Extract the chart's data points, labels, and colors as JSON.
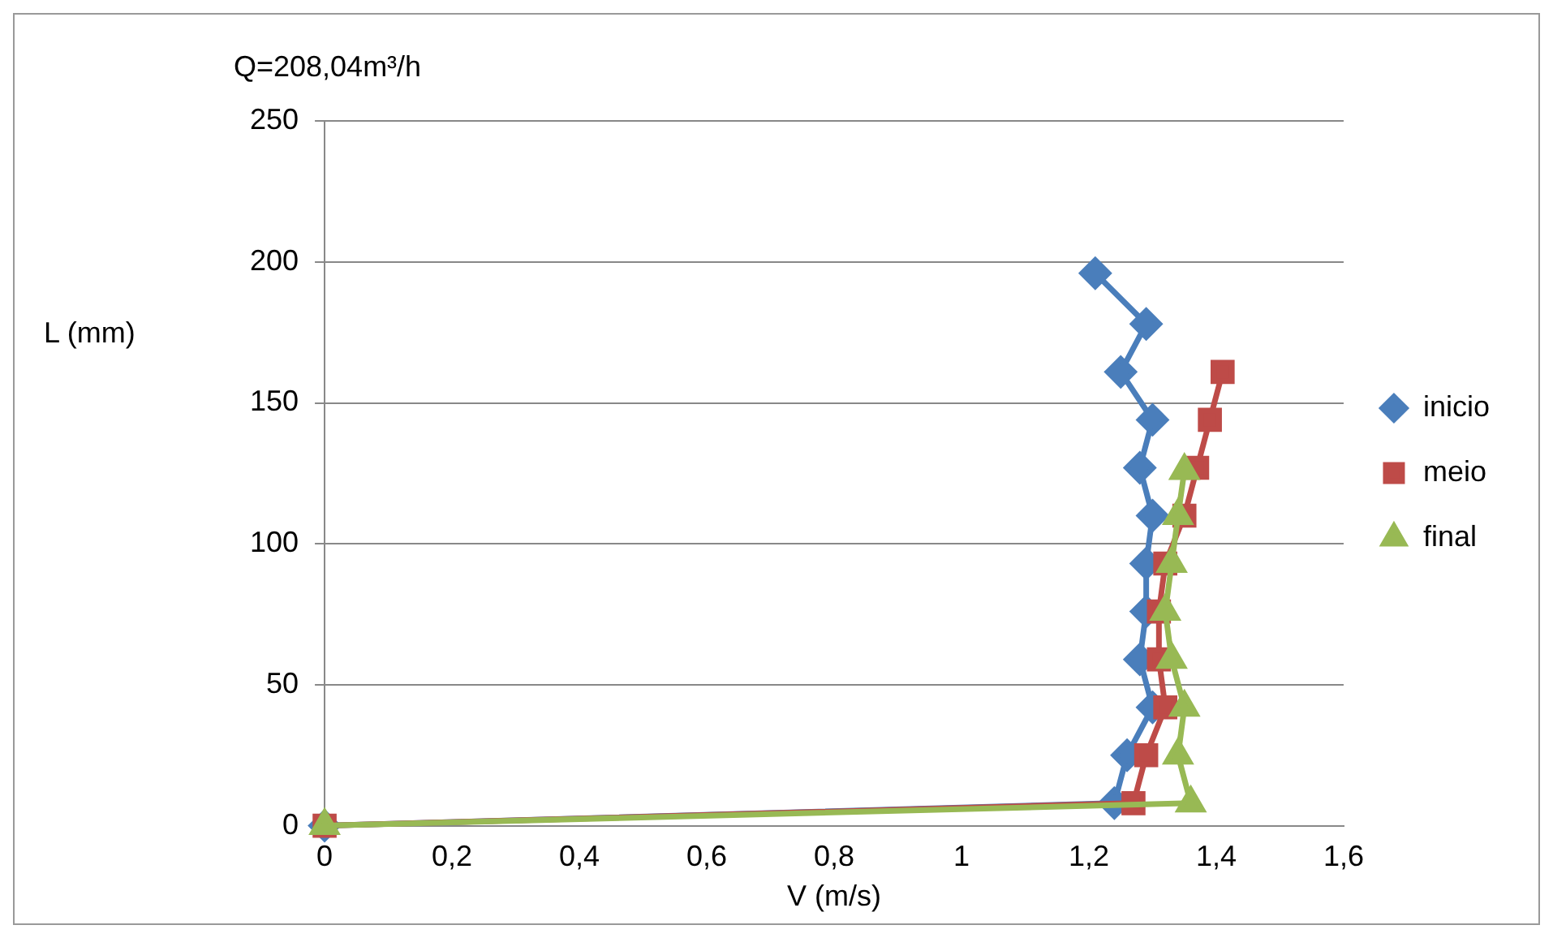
{
  "chart_data": {
    "type": "line",
    "title": "Q=208,04m³/h",
    "xlabel": "V (m/s)",
    "ylabel": "L (mm)",
    "xlim": [
      0,
      1.6
    ],
    "xticks": [
      0,
      {
        "value": 0.2,
        "label": "0,2"
      },
      {
        "value": 0.4,
        "label": "0,4"
      },
      {
        "value": 0.6,
        "label": "0,6"
      },
      {
        "value": 0.8,
        "label": "0,8"
      },
      1,
      {
        "value": 1.2,
        "label": "1,2"
      },
      {
        "value": 1.4,
        "label": "1,4"
      },
      {
        "value": 1.6,
        "label": "1,6"
      }
    ],
    "ylim": [
      0,
      250
    ],
    "yticks": [
      0,
      50,
      100,
      150,
      200,
      250
    ],
    "grid": "y",
    "legend": "right",
    "series": [
      {
        "name": "inicio",
        "color": "#4a7ebb",
        "marker": "diamond",
        "x": [
          0,
          1.24,
          1.26,
          1.3,
          1.28,
          1.29,
          1.29,
          1.3,
          1.28,
          1.3,
          1.25,
          1.29,
          1.21
        ],
        "values": [
          0,
          8,
          25,
          42,
          59,
          76,
          93,
          110,
          127,
          144,
          161,
          178,
          196
        ]
      },
      {
        "name": "meio",
        "color": "#be4b48",
        "marker": "square",
        "x": [
          0,
          1.27,
          1.29,
          1.32,
          1.31,
          1.31,
          1.32,
          1.35,
          1.37,
          1.39,
          1.41
        ],
        "values": [
          0,
          8,
          25,
          42,
          59,
          76,
          93,
          110,
          127,
          144,
          161
        ]
      },
      {
        "name": "final",
        "color": "#98b954",
        "marker": "triangle",
        "x": [
          0,
          1.36,
          1.34,
          1.35,
          1.33,
          1.32,
          1.33,
          1.34,
          1.35
        ],
        "values": [
          0,
          8,
          25,
          42,
          59,
          76,
          93,
          110,
          126
        ]
      }
    ]
  }
}
